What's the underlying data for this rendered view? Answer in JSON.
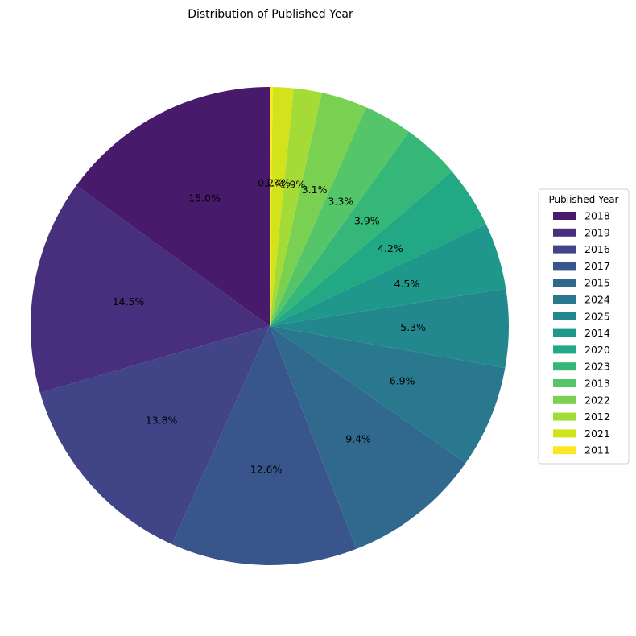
{
  "chart_data": {
    "type": "pie",
    "title": "Distribution of Published Year",
    "legend_title": "Published Year",
    "legend_position": "right",
    "start_angle_deg": 90,
    "direction": "counterclockwise",
    "slices": [
      {
        "label": "2018",
        "value": 15.0,
        "pct_label": "15.0%",
        "color": "#481a6c"
      },
      {
        "label": "2019",
        "value": 14.5,
        "pct_label": "14.5%",
        "color": "#472f7d"
      },
      {
        "label": "2016",
        "value": 13.8,
        "pct_label": "13.8%",
        "color": "#414487"
      },
      {
        "label": "2017",
        "value": 12.6,
        "pct_label": "12.6%",
        "color": "#39568c"
      },
      {
        "label": "2015",
        "value": 9.4,
        "pct_label": "9.4%",
        "color": "#31688e"
      },
      {
        "label": "2024",
        "value": 6.9,
        "pct_label": "6.9%",
        "color": "#2a788e"
      },
      {
        "label": "2025",
        "value": 5.3,
        "pct_label": "5.3%",
        "color": "#23888e"
      },
      {
        "label": "2014",
        "value": 4.5,
        "pct_label": "4.5%",
        "color": "#1f988b"
      },
      {
        "label": "2020",
        "value": 4.2,
        "pct_label": "4.2%",
        "color": "#22a884"
      },
      {
        "label": "2023",
        "value": 3.9,
        "pct_label": "3.9%",
        "color": "#35b779"
      },
      {
        "label": "2013",
        "value": 3.3,
        "pct_label": "3.3%",
        "color": "#54c568"
      },
      {
        "label": "2022",
        "value": 3.1,
        "pct_label": "3.1%",
        "color": "#7ad151"
      },
      {
        "label": "2012",
        "value": 1.9,
        "pct_label": "1.9%",
        "color": "#a5db36"
      },
      {
        "label": "2021",
        "value": 1.4,
        "pct_label": "1.4%",
        "color": "#d2e21b"
      },
      {
        "label": "2011",
        "value": 0.2,
        "pct_label": "0.2%",
        "color": "#fde725"
      }
    ]
  }
}
